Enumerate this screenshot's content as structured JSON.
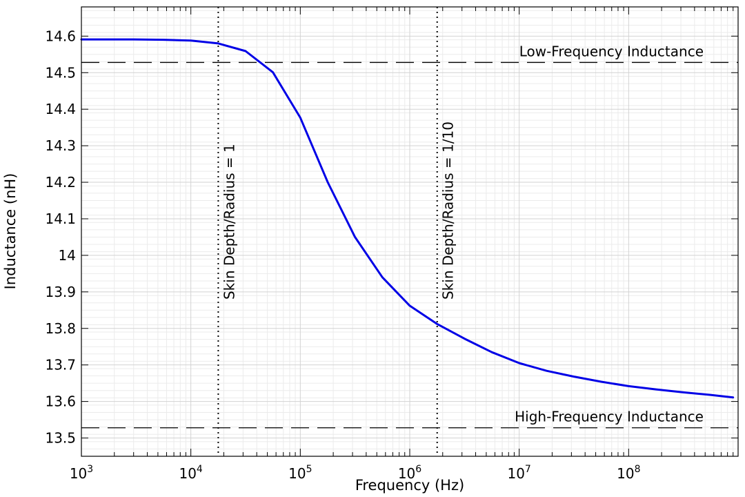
{
  "chart_data": {
    "type": "line",
    "title": "",
    "xlabel": "Frequency (Hz)",
    "ylabel": "Inductance (nH)",
    "xscale": "log",
    "xlim": [
      1000,
      1000000000
    ],
    "ylim": [
      13.45,
      14.68
    ],
    "grid": true,
    "x_ticks": [
      {
        "value": 1000,
        "base": "10",
        "exp": "3"
      },
      {
        "value": 10000,
        "base": "10",
        "exp": "4"
      },
      {
        "value": 100000,
        "base": "10",
        "exp": "5"
      },
      {
        "value": 1000000,
        "base": "10",
        "exp": "6"
      },
      {
        "value": 10000000,
        "base": "10",
        "exp": "7"
      },
      {
        "value": 100000000,
        "base": "10",
        "exp": "8"
      }
    ],
    "y_ticks": [
      {
        "value": 13.5,
        "label": "13.5"
      },
      {
        "value": 13.6,
        "label": "13.6"
      },
      {
        "value": 13.7,
        "label": "13.7"
      },
      {
        "value": 13.8,
        "label": "13.8"
      },
      {
        "value": 13.9,
        "label": "13.9"
      },
      {
        "value": 14.0,
        "label": "14"
      },
      {
        "value": 14.1,
        "label": "14.1"
      },
      {
        "value": 14.2,
        "label": "14.2"
      },
      {
        "value": 14.3,
        "label": "14.3"
      },
      {
        "value": 14.4,
        "label": "14.4"
      },
      {
        "value": 14.5,
        "label": "14.5"
      },
      {
        "value": 14.6,
        "label": "14.6"
      }
    ],
    "series": [
      {
        "name": "Inductance",
        "color": "#0000e6",
        "x": [
          1000,
          3000,
          5600,
          10000,
          17800,
          31600,
          56200,
          100000,
          178000,
          316000,
          562000,
          1000000,
          1780000,
          3160000,
          5620000,
          10000000,
          17800000,
          31600000,
          56200000,
          100000000,
          178000000,
          316000000,
          562000000,
          900000000
        ],
        "y": [
          14.591,
          14.591,
          14.59,
          14.588,
          14.58,
          14.559,
          14.501,
          14.377,
          14.2,
          14.05,
          13.94,
          13.862,
          13.812,
          13.772,
          13.735,
          13.705,
          13.684,
          13.668,
          13.654,
          13.642,
          13.633,
          13.625,
          13.618,
          13.611
        ]
      }
    ],
    "reference_lines": [
      {
        "orientation": "horizontal",
        "style": "dashed",
        "value": 14.528,
        "label": "Low-Frequency Inductance"
      },
      {
        "orientation": "horizontal",
        "style": "dashed",
        "value": 13.528,
        "label": "High-Frequency Inductance"
      },
      {
        "orientation": "vertical",
        "style": "dotted",
        "value": 17800,
        "label": "Skin Depth/Radius = 1"
      },
      {
        "orientation": "vertical",
        "style": "dotted",
        "value": 1780000,
        "label": "Skin Depth/Radius = 1/10"
      }
    ]
  }
}
